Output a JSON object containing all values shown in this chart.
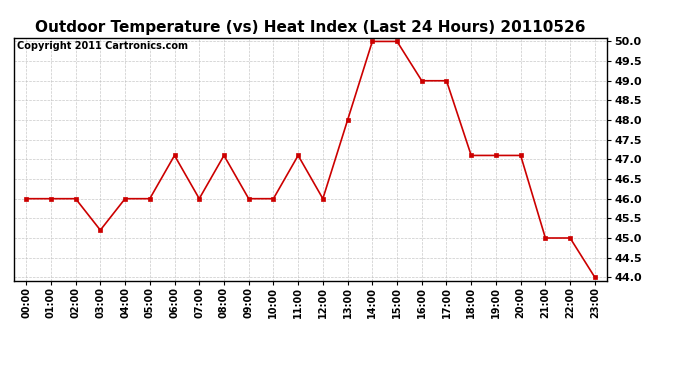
{
  "title": "Outdoor Temperature (vs) Heat Index (Last 24 Hours) 20110526",
  "copyright_text": "Copyright 2011 Cartronics.com",
  "x_labels": [
    "00:00",
    "01:00",
    "02:00",
    "03:00",
    "04:00",
    "05:00",
    "06:00",
    "07:00",
    "08:00",
    "09:00",
    "10:00",
    "11:00",
    "12:00",
    "13:00",
    "14:00",
    "15:00",
    "16:00",
    "17:00",
    "18:00",
    "19:00",
    "20:00",
    "21:00",
    "22:00",
    "23:00"
  ],
  "y_values": [
    46.0,
    46.0,
    46.0,
    45.2,
    46.0,
    46.0,
    47.1,
    46.0,
    47.1,
    46.0,
    46.0,
    47.1,
    46.0,
    48.0,
    50.0,
    50.0,
    49.0,
    49.0,
    47.1,
    47.1,
    47.1,
    45.0,
    45.0,
    44.0
  ],
  "line_color": "#cc0000",
  "marker": "s",
  "marker_size": 3,
  "bg_color": "#ffffff",
  "grid_color": "#bbbbbb",
  "y_min": 44.0,
  "y_max": 50.0,
  "y_tick_interval": 0.5,
  "title_fontsize": 11,
  "copyright_fontsize": 7,
  "tick_fontsize": 7,
  "y_tick_fontsize": 8
}
